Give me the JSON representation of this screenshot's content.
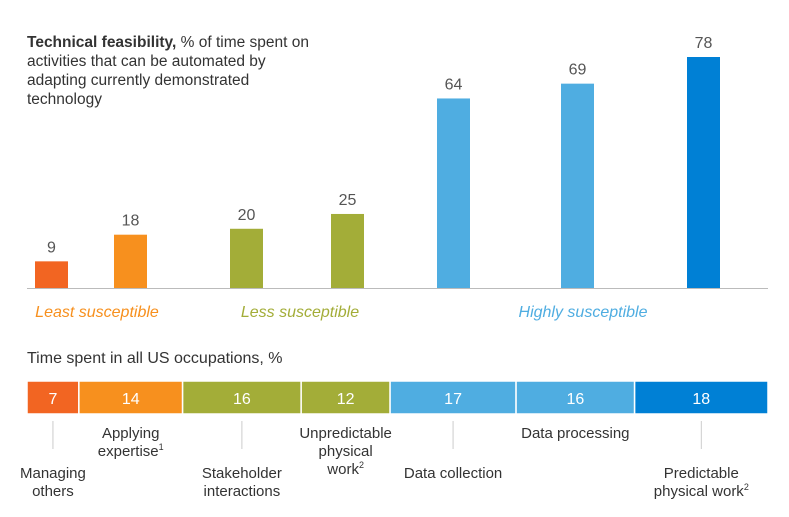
{
  "chart_data": [
    {
      "type": "bar",
      "title_bold": "Technical feasibility,",
      "title_rest": " % of time spent on activities that can be automated by adapting currently demonstrated technology",
      "categories": [
        "Managing others",
        "Applying expertise",
        "Stakeholder interactions",
        "Unpredictable physical work",
        "Data collection",
        "Data processing",
        "Predictable physical work"
      ],
      "values": [
        9,
        18,
        20,
        25,
        64,
        69,
        78
      ],
      "colors": [
        "#F26522",
        "#F7901E",
        "#A3AD38",
        "#A3AD38",
        "#4FADE1",
        "#4FADE1",
        "#0080D5"
      ],
      "ylim": [
        0,
        80
      ],
      "grid": false,
      "groups": [
        {
          "label": "Least susceptible",
          "color": "#F7901E"
        },
        {
          "label": "Less susceptible",
          "color": "#A3AD38"
        },
        {
          "label": "Highly susceptible",
          "color": "#4FADE1"
        }
      ]
    },
    {
      "type": "stacked-bar",
      "title": "Time spent in all US occupations, %",
      "categories": [
        "Managing others",
        "Applying expertise",
        "Stakeholder interactions",
        "Unpredictable physical work",
        "Data collection",
        "Data processing",
        "Predictable physical work"
      ],
      "values": [
        7,
        14,
        16,
        12,
        17,
        16,
        18
      ],
      "colors": [
        "#F26522",
        "#F7901E",
        "#A3AD38",
        "#A3AD38",
        "#4FADE1",
        "#4FADE1",
        "#0080D5"
      ],
      "labels": [
        {
          "lines": [
            "Managing",
            "others"
          ],
          "sup": ""
        },
        {
          "lines": [
            "Applying",
            "expertise"
          ],
          "sup": "1"
        },
        {
          "lines": [
            "Stakeholder",
            "interactions"
          ],
          "sup": ""
        },
        {
          "lines": [
            "Unpredictable",
            "physical",
            "work"
          ],
          "sup": "2"
        },
        {
          "lines": [
            "Data collection"
          ],
          "sup": ""
        },
        {
          "lines": [
            "Data processing"
          ],
          "sup": ""
        },
        {
          "lines": [
            "Predictable",
            "physical work"
          ],
          "sup": "2"
        }
      ]
    }
  ]
}
